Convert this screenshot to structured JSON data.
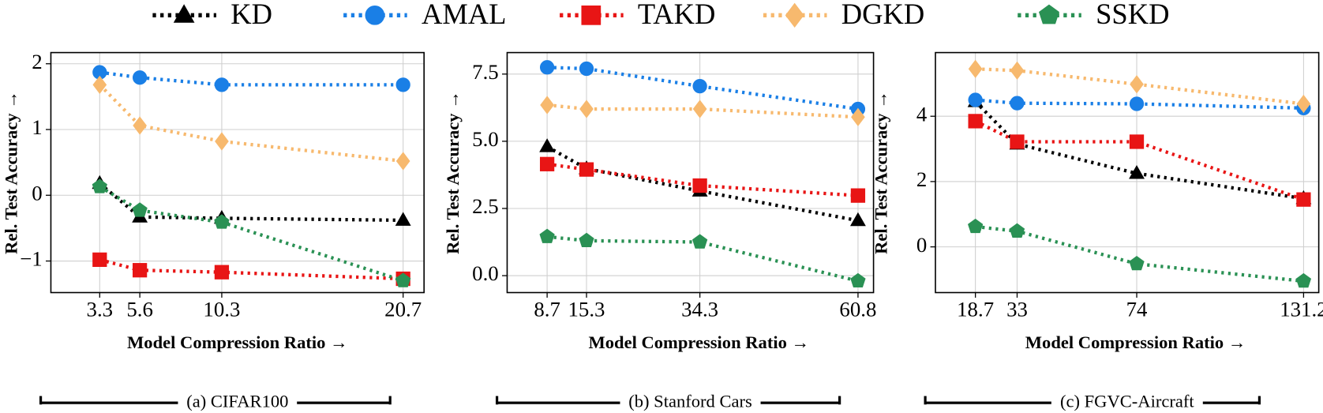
{
  "legend": [
    {
      "name": "KD",
      "color": "#000000",
      "marker": "triangle"
    },
    {
      "name": "AMAL",
      "color": "#1a7fe6",
      "marker": "circle"
    },
    {
      "name": "TAKD",
      "color": "#e81515",
      "marker": "square"
    },
    {
      "name": "DGKD",
      "color": "#f7b96e",
      "marker": "diamond"
    },
    {
      "name": "SSKD",
      "color": "#2a9154",
      "marker": "pentagon"
    }
  ],
  "chart_data": [
    {
      "type": "line",
      "caption": "(a) CIFAR100",
      "x_label": "Model Compression Ratio →",
      "y_label": "Rel. Test Accuracy →",
      "x": [
        3.3,
        5.6,
        10.3,
        20.7
      ],
      "xlim": [
        0.5,
        21.9
      ],
      "xticks": [
        3.3,
        5.6,
        10.3,
        20.7
      ],
      "ylim": [
        -1.48,
        2.17
      ],
      "yticks": [
        {
          "value": -1,
          "label": "−1"
        },
        0,
        1,
        2
      ],
      "grid": true,
      "series": [
        {
          "values": [
            0.18,
            -0.33,
            -0.35,
            -0.38
          ]
        },
        {
          "values": [
            1.87,
            1.79,
            1.68,
            1.68
          ]
        },
        {
          "values": [
            -0.98,
            -1.14,
            -1.17,
            -1.27
          ]
        },
        {
          "values": [
            1.68,
            1.06,
            0.82,
            0.52
          ]
        },
        {
          "values": [
            0.13,
            -0.23,
            -0.41,
            -1.3
          ]
        }
      ]
    },
    {
      "type": "line",
      "caption": "(b) Stanford Cars",
      "x_label": "Model Compression Ratio →",
      "y_label": "Rel. Test Accuracy →",
      "x": [
        8.7,
        15.3,
        34.3,
        60.8
      ],
      "xlim": [
        2.0,
        63.4
      ],
      "xticks": [
        8.7,
        15.3,
        34.3,
        60.8
      ],
      "ylim": [
        -0.63,
        8.3
      ],
      "yticks": [
        {
          "value": 0,
          "label": "0.0"
        },
        2.5,
        {
          "value": 5,
          "label": "5.0"
        },
        7.5
      ],
      "grid": true,
      "series": [
        {
          "values": [
            4.8,
            3.98,
            3.15,
            2.05
          ]
        },
        {
          "values": [
            7.75,
            7.7,
            7.05,
            6.2
          ]
        },
        {
          "values": [
            4.15,
            3.95,
            3.35,
            2.98
          ]
        },
        {
          "values": [
            6.35,
            6.2,
            6.2,
            5.9
          ]
        },
        {
          "values": [
            1.45,
            1.3,
            1.25,
            -0.2
          ]
        }
      ]
    },
    {
      "type": "line",
      "caption": "(c) FGVC-Aircraft",
      "x_label": "Model Compression Ratio →",
      "y_label": "Rel. Test Accuracy →",
      "x": [
        18.7,
        33,
        74,
        131.2
      ],
      "xlim": [
        5.0,
        136.4
      ],
      "xticks": [
        18.7,
        33,
        74,
        131.2
      ],
      "ylim": [
        -1.4,
        5.95
      ],
      "yticks": [
        0,
        2,
        4
      ],
      "grid": true,
      "series": [
        {
          "values": [
            4.45,
            3.15,
            2.25,
            1.48
          ]
        },
        {
          "values": [
            4.5,
            4.4,
            4.38,
            4.25
          ]
        },
        {
          "values": [
            3.85,
            3.22,
            3.22,
            1.45
          ]
        },
        {
          "values": [
            5.45,
            5.4,
            4.98,
            4.38
          ]
        },
        {
          "values": [
            0.62,
            0.48,
            -0.52,
            -1.05
          ]
        }
      ]
    }
  ]
}
